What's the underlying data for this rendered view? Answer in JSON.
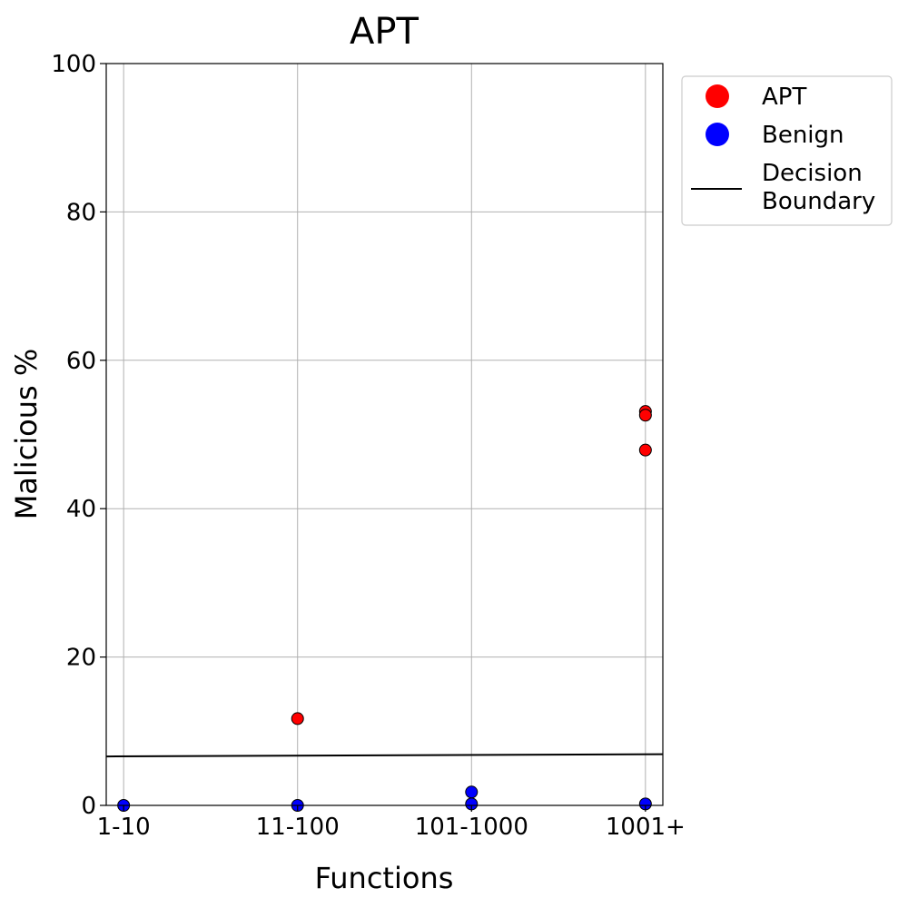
{
  "chart_data": {
    "type": "scatter",
    "title": "APT",
    "xlabel": "Functions",
    "ylabel": "Malicious %",
    "categories": [
      "1-10",
      "11-100",
      "101-1000",
      "1001+"
    ],
    "xlim": [
      -0.1,
      3.1
    ],
    "ylim": [
      0,
      100
    ],
    "yticks": [
      0,
      20,
      40,
      60,
      80,
      100
    ],
    "grid": true,
    "legend_position": "outside-top-right",
    "series": [
      {
        "name": "APT",
        "color": "#ff0000",
        "points": [
          {
            "x": 1,
            "y": 11.7
          },
          {
            "x": 3,
            "y": 53.1
          },
          {
            "x": 3,
            "y": 52.6
          },
          {
            "x": 3,
            "y": 47.9
          }
        ]
      },
      {
        "name": "Benign",
        "color": "#0000ff",
        "points": [
          {
            "x": 0,
            "y": 0.0
          },
          {
            "x": 1,
            "y": 0.0
          },
          {
            "x": 2,
            "y": 1.8
          },
          {
            "x": 2,
            "y": 0.2
          },
          {
            "x": 3,
            "y": 0.2
          }
        ]
      }
    ],
    "decision_boundary": {
      "name": "Decision Boundary",
      "color": "#000000",
      "start": {
        "x": -0.1,
        "y": 6.6
      },
      "end": {
        "x": 3.1,
        "y": 6.9
      }
    },
    "legend": [
      "APT",
      "Benign",
      "Decision\nBoundary"
    ]
  }
}
